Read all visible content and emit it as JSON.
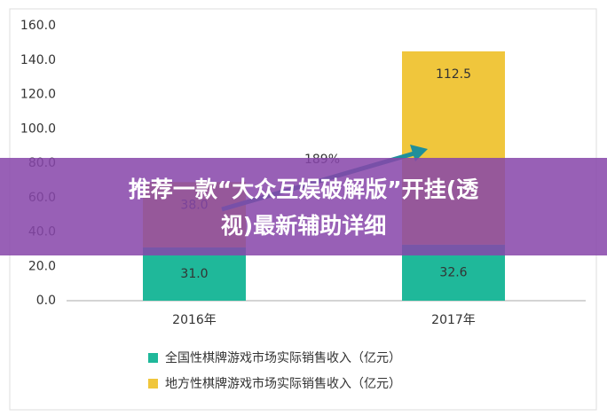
{
  "chart_data": {
    "type": "bar",
    "stacked": true,
    "categories": [
      "2016年",
      "2017年"
    ],
    "series": [
      {
        "name": "全国性棋牌游戏市场实际销售收入（亿元）",
        "color": "#1fb89a",
        "values": [
          31.0,
          32.6
        ],
        "value_labels": [
          "31.0",
          "32.6"
        ]
      },
      {
        "name": "地方性棋牌游戏市场实际销售收入（亿元）",
        "color": "#f0c63c",
        "values": [
          38.0,
          112.5
        ],
        "value_labels": [
          "38.0",
          "112.5"
        ]
      }
    ],
    "annotation": "189%",
    "ylim": [
      0,
      160
    ],
    "yticks": [
      {
        "value": 0,
        "label": "0.0"
      },
      {
        "value": 20,
        "label": "20.0"
      },
      {
        "value": 40,
        "label": "40.0"
      },
      {
        "value": 60,
        "label": "60.0"
      },
      {
        "value": 80,
        "label": "80.0"
      },
      {
        "value": 100,
        "label": "100.0"
      },
      {
        "value": 120,
        "label": "120.0"
      },
      {
        "value": 140,
        "label": "140.0"
      },
      {
        "value": 160,
        "label": "160.0"
      }
    ],
    "grid": false
  },
  "banner": {
    "lines": [
      "推荐一款“大众互娱破解版”开挂(透",
      "视)最新辅助详细"
    ]
  }
}
